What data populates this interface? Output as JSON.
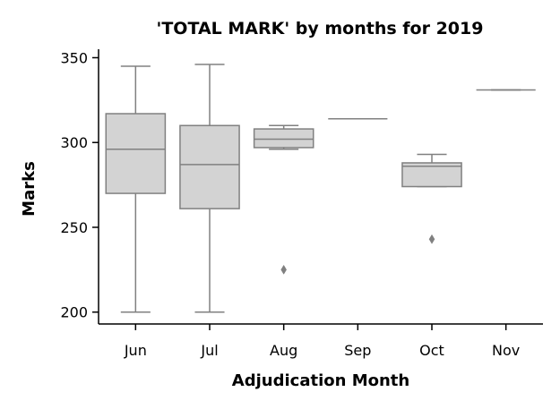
{
  "chart_data": {
    "type": "box",
    "title": "'TOTAL MARK' by months for 2019",
    "xlabel": "Adjudication Month",
    "ylabel": "Marks",
    "categories": [
      "Jun",
      "Jul",
      "Aug",
      "Sep",
      "Oct",
      "Nov"
    ],
    "ylim": [
      193,
      355
    ],
    "yticks": [
      200,
      250,
      300,
      350
    ],
    "grid": false,
    "colors": {
      "box_fill": "#d3d3d3",
      "line": "#808080",
      "axis": "#000000"
    },
    "boxes": [
      {
        "category": "Jun",
        "whisker_low": 200,
        "q1": 270,
        "median": 296,
        "q3": 317,
        "whisker_high": 345,
        "outliers": []
      },
      {
        "category": "Jul",
        "whisker_low": 200,
        "q1": 261,
        "median": 287,
        "q3": 310,
        "whisker_high": 346,
        "outliers": []
      },
      {
        "category": "Aug",
        "whisker_low": 296,
        "q1": 297,
        "median": 302,
        "q3": 308,
        "whisker_high": 310,
        "outliers": [
          225
        ]
      },
      {
        "category": "Sep",
        "whisker_low": 314,
        "q1": 314,
        "median": 314,
        "q3": 314,
        "whisker_high": 314,
        "outliers": []
      },
      {
        "category": "Oct",
        "whisker_low": 274,
        "q1": 274,
        "median": 286,
        "q3": 288,
        "whisker_high": 293,
        "outliers": [
          243
        ]
      },
      {
        "category": "Nov",
        "whisker_low": 331,
        "q1": 331,
        "median": 331,
        "q3": 331,
        "whisker_high": 331,
        "outliers": []
      }
    ]
  }
}
